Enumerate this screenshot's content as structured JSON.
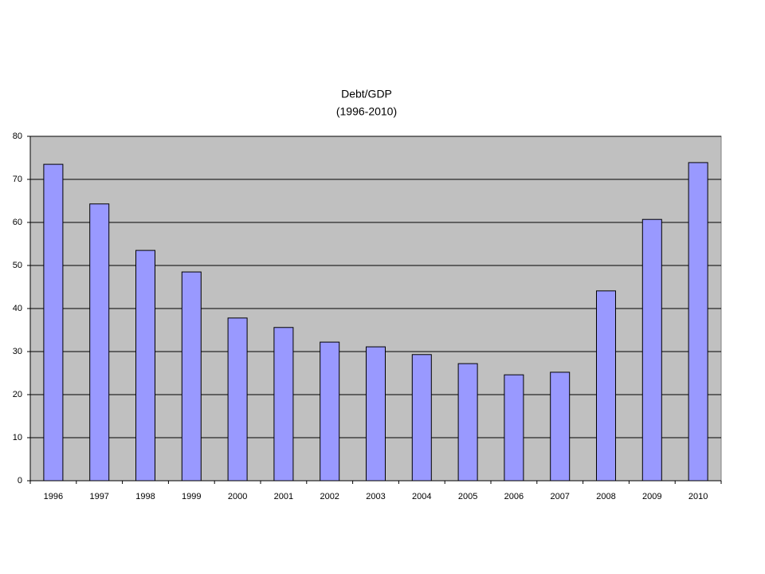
{
  "chart_data": {
    "type": "bar",
    "title": "Debt/GDP",
    "subtitle": "(1996-2010)",
    "categories": [
      "1996",
      "1997",
      "1998",
      "1999",
      "2000",
      "2001",
      "2002",
      "2003",
      "2004",
      "2005",
      "2006",
      "2007",
      "2008",
      "2009",
      "2010"
    ],
    "values": [
      73.5,
      64.3,
      53.5,
      48.5,
      37.8,
      35.6,
      32.2,
      31.1,
      29.3,
      27.2,
      24.6,
      25.2,
      44.1,
      60.7,
      73.9
    ],
    "color": "#9999ff",
    "ylim": [
      0,
      80
    ],
    "yticks": [
      0,
      10,
      20,
      30,
      40,
      50,
      60,
      70,
      80
    ],
    "grid": true
  }
}
